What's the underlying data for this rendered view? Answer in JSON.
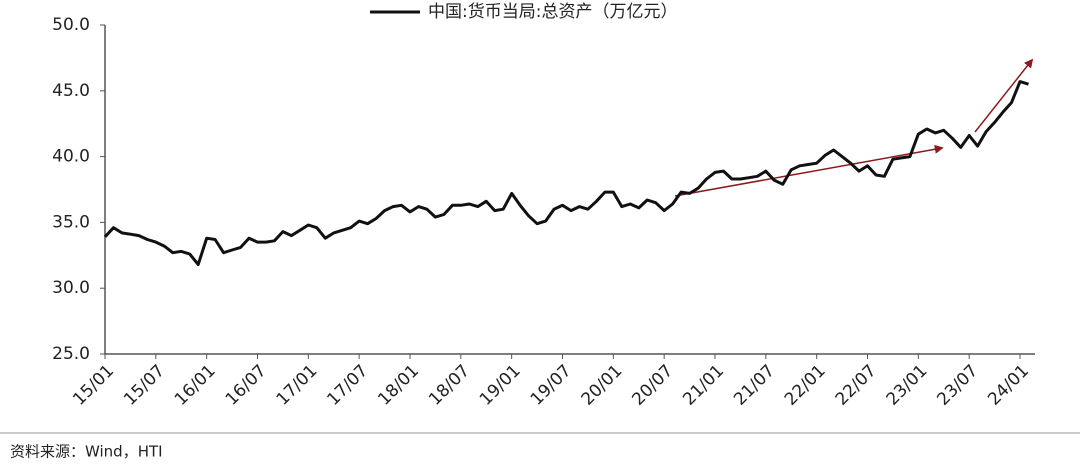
{
  "chart_data": {
    "type": "line",
    "categories": [
      "15/01",
      null,
      null,
      null,
      null,
      null,
      "15/07",
      null,
      null,
      null,
      null,
      null,
      "16/01",
      null,
      null,
      null,
      null,
      null,
      "16/07",
      null,
      null,
      null,
      null,
      null,
      "17/01",
      null,
      null,
      null,
      null,
      null,
      "17/07",
      null,
      null,
      null,
      null,
      null,
      "18/01",
      null,
      null,
      null,
      null,
      null,
      "18/07",
      null,
      null,
      null,
      null,
      null,
      "19/01",
      null,
      null,
      null,
      null,
      null,
      "19/07",
      null,
      null,
      null,
      null,
      null,
      "20/01",
      null,
      null,
      null,
      null,
      null,
      "20/07",
      null,
      null,
      null,
      null,
      null,
      "21/01",
      null,
      null,
      null,
      null,
      null,
      "21/07",
      null,
      null,
      null,
      null,
      null,
      "22/01",
      null,
      null,
      null,
      null,
      null,
      "22/07",
      null,
      null,
      null,
      null,
      null,
      "23/01",
      null,
      null,
      null,
      null,
      null,
      "23/07",
      null,
      null,
      null,
      null,
      null,
      "24/01",
      null
    ],
    "series": [
      {
        "name": "中国:货币当局:总资产（万亿元）",
        "color": "#111111",
        "values": [
          33.9,
          34.6,
          34.2,
          34.1,
          34.0,
          33.7,
          33.5,
          33.2,
          32.7,
          32.8,
          32.6,
          31.8,
          33.8,
          33.7,
          32.7,
          32.9,
          33.1,
          33.8,
          33.5,
          33.5,
          33.6,
          34.3,
          34.0,
          34.4,
          34.8,
          34.6,
          33.8,
          34.2,
          34.4,
          34.6,
          35.1,
          34.9,
          35.3,
          35.9,
          36.2,
          36.3,
          35.8,
          36.2,
          36.0,
          35.4,
          35.6,
          36.3,
          36.3,
          36.4,
          36.2,
          36.6,
          35.9,
          36.0,
          37.2,
          36.3,
          35.5,
          34.9,
          35.1,
          36.0,
          36.3,
          35.9,
          36.2,
          36.0,
          36.6,
          37.3,
          37.3,
          36.2,
          36.4,
          36.1,
          36.7,
          36.5,
          35.9,
          36.4,
          37.3,
          37.2,
          37.6,
          38.3,
          38.8,
          38.9,
          38.3,
          38.3,
          38.4,
          38.5,
          38.9,
          38.2,
          37.9,
          39.0,
          39.3,
          39.4,
          39.5,
          40.1,
          40.5,
          40.0,
          39.5,
          38.9,
          39.3,
          38.6,
          38.5,
          39.8,
          39.9,
          40.0,
          41.7,
          42.1,
          41.8,
          42.0,
          41.4,
          40.7,
          41.6,
          40.8,
          41.9,
          42.6,
          43.4,
          44.1,
          45.7,
          45.5
        ]
      }
    ],
    "ylim": [
      25,
      50
    ],
    "yticks": [
      {
        "value": 25,
        "label": "25.0"
      },
      {
        "value": 30,
        "label": "30.0"
      },
      {
        "value": 35,
        "label": "35.0"
      },
      {
        "value": 40,
        "label": "40.0"
      },
      {
        "value": 45,
        "label": "45.0"
      },
      {
        "value": 50,
        "label": "50.0"
      }
    ],
    "source": "资料来源：Wind，HTI"
  }
}
